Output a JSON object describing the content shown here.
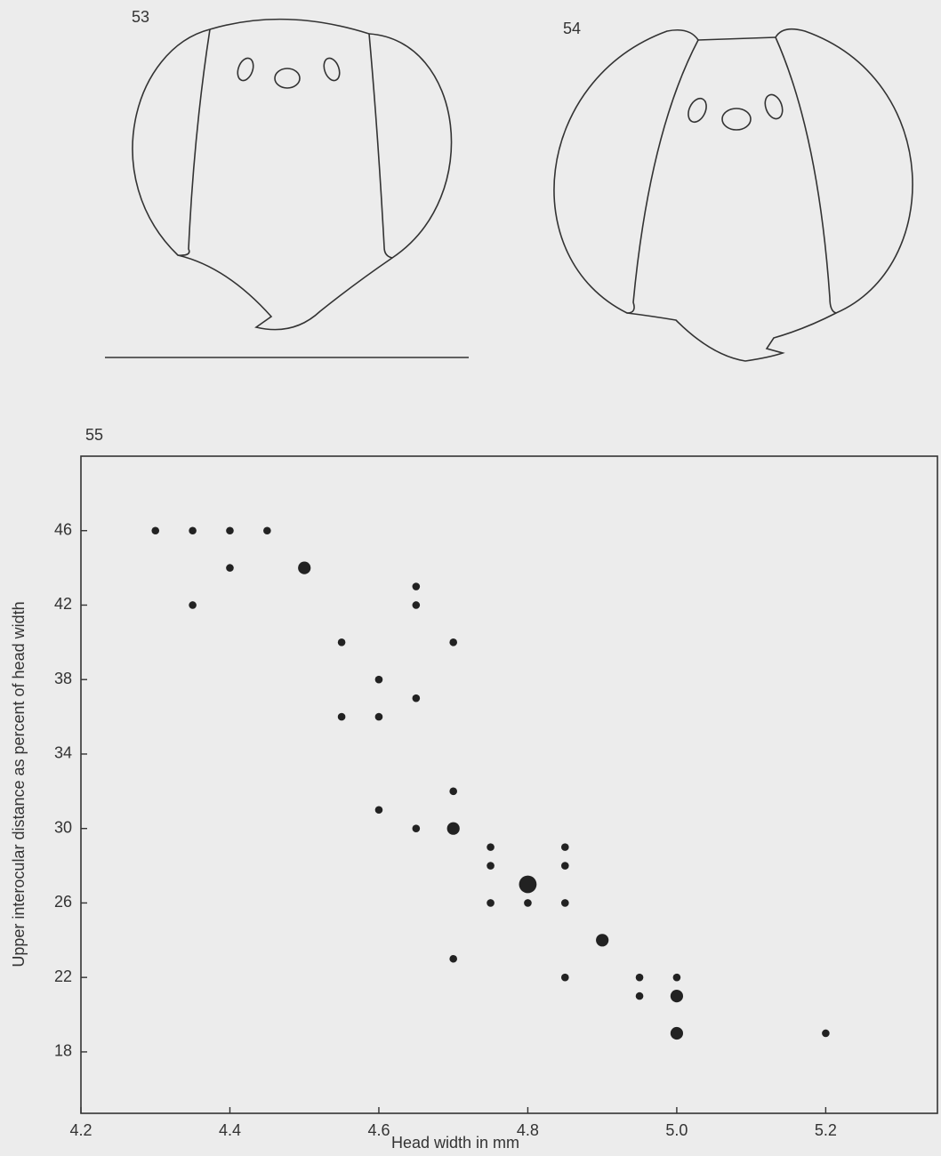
{
  "figure_labels": [
    "53",
    "54"
  ],
  "chart_data": {
    "type": "scatter",
    "panel_label": "55",
    "xlabel": "Head width in mm",
    "ylabel": "Upper interocular distance as percent of head width",
    "xlim": [
      4.2,
      5.35
    ],
    "ylim": [
      14.7,
      50
    ],
    "xticks": [
      4.2,
      4.4,
      4.6,
      4.8,
      {
        "value": 5,
        "label": "5.0"
      },
      5.2
    ],
    "yticks": [
      18,
      22,
      26,
      30,
      34,
      38,
      42,
      46
    ],
    "color": "#222222",
    "x": [
      4.3,
      4.35,
      4.4,
      4.45,
      4.4,
      4.5,
      4.35,
      4.65,
      4.65,
      4.55,
      4.7,
      4.6,
      4.65,
      4.55,
      4.6,
      4.7,
      4.6,
      4.65,
      4.7,
      4.75,
      4.85,
      4.75,
      4.85,
      4.8,
      4.75,
      4.8,
      4.85,
      4.9,
      4.7,
      4.85,
      4.95,
      5.0,
      4.95,
      5.0,
      5.0,
      5.2
    ],
    "values": [
      46,
      46,
      46,
      46,
      44,
      44,
      42,
      43,
      42,
      40,
      40,
      38,
      37,
      36,
      36,
      32,
      31,
      30,
      30,
      29,
      29,
      28,
      28,
      27,
      26,
      26,
      26,
      24,
      23,
      22,
      22,
      22,
      21,
      21,
      19,
      19
    ],
    "sizes": [
      1,
      1,
      1,
      1,
      1,
      2,
      1,
      1,
      1,
      1,
      1,
      1,
      1,
      1,
      1,
      1,
      1,
      1,
      2,
      1,
      1,
      1,
      1,
      3,
      1,
      1,
      1,
      2,
      1,
      1,
      1,
      1,
      1,
      2,
      2,
      1
    ]
  }
}
